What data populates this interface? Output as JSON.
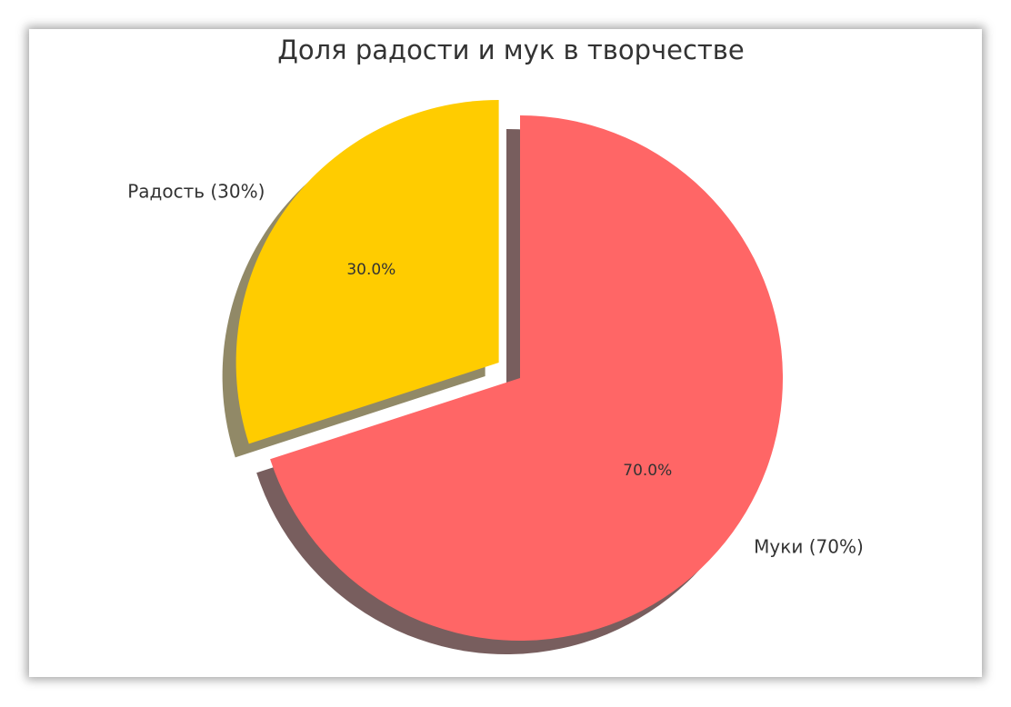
{
  "chart_data": {
    "type": "pie",
    "title": "Доля радости и мук в творчестве",
    "categories": [
      "Радость (30%)",
      "Муки (70%)"
    ],
    "values": [
      30,
      70
    ],
    "value_labels": [
      "30.0%",
      "70.0%"
    ],
    "colors": [
      "#ffcc00",
      "#ff6666"
    ],
    "explode": [
      0.1,
      0
    ],
    "startangle": 90,
    "shadow": true
  }
}
